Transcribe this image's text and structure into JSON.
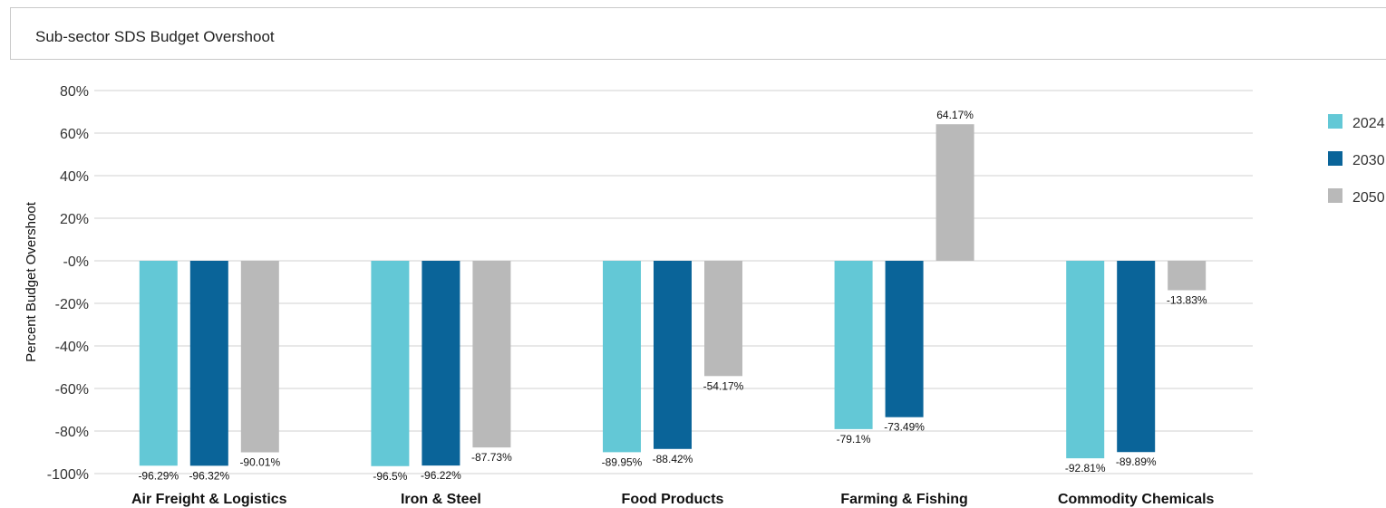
{
  "header": {
    "title": "Sub-sector SDS Budget Overshoot"
  },
  "chart_data": {
    "type": "bar",
    "title": "Sub-sector SDS Budget Overshoot",
    "xlabel": "",
    "ylabel": "Percent Budget Overshoot",
    "ylim": [
      -100,
      80
    ],
    "yticks": [
      80,
      60,
      40,
      20,
      0,
      -20,
      -40,
      -60,
      -80,
      -100
    ],
    "ytick_labels": [
      "80%",
      "60%",
      "40%",
      "20%",
      "-0%",
      "-20%",
      "-40%",
      "-60%",
      "-80%",
      "-100%"
    ],
    "grid": true,
    "legend_position": "right",
    "categories": [
      "Air Freight & Logistics",
      "Iron & Steel",
      "Food Products",
      "Farming & Fishing",
      "Commodity Chemicals"
    ],
    "series": [
      {
        "name": "2024",
        "color": "#63c8d6",
        "values": [
          -96.29,
          -96.5,
          -89.95,
          -79.1,
          -92.81
        ],
        "labels": [
          "-96.29%",
          "-96.5%",
          "-89.95%",
          "-79.1%",
          "-92.81%"
        ]
      },
      {
        "name": "2030",
        "color": "#0a6499",
        "values": [
          -96.32,
          -96.22,
          -88.42,
          -73.49,
          -89.89
        ],
        "labels": [
          "-96.32%",
          "-96.22%",
          "-88.42%",
          "-73.49%",
          "-89.89%"
        ]
      },
      {
        "name": "2050",
        "color": "#b9b9b9",
        "values": [
          -90.01,
          -87.73,
          -54.17,
          64.17,
          -13.83
        ],
        "labels": [
          "-90.01%",
          "-87.73%",
          "-54.17%",
          "64.17%",
          "-13.83%"
        ]
      }
    ]
  }
}
